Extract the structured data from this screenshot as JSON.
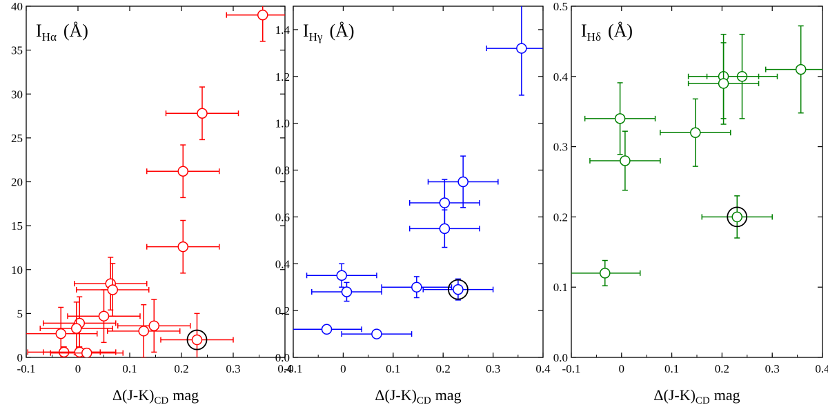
{
  "chart_data": [
    {
      "type": "scatter",
      "label_main": "I",
      "label_sub": "Hα",
      "label_unit": "(Å)",
      "xlabel_main": "Δ(J-K)",
      "xlabel_sub": "CD",
      "xlabel_unit": "mag",
      "xlim": [
        -0.1,
        0.4
      ],
      "ylim": [
        0,
        40
      ],
      "xticks": [
        "-0.1",
        "0",
        "0.1",
        "0.2",
        "0.3",
        "0.4"
      ],
      "xtick_values": [
        -0.1,
        0,
        0.1,
        0.2,
        0.3,
        0.4
      ],
      "yticks": [
        "0",
        "5",
        "10",
        "15",
        "20",
        "25",
        "30",
        "35",
        "40"
      ],
      "ytick_values": [
        0,
        5,
        10,
        15,
        20,
        25,
        30,
        35,
        40
      ],
      "color": "#ff0000",
      "points": [
        {
          "x": 0.357,
          "y": 39.0,
          "xerr": 0.07,
          "yerr": 3.0
        },
        {
          "x": 0.24,
          "y": 27.8,
          "xerr": 0.07,
          "yerr": 3.0
        },
        {
          "x": 0.203,
          "y": 21.2,
          "xerr": 0.07,
          "yerr": 3.0
        },
        {
          "x": 0.203,
          "y": 12.6,
          "xerr": 0.07,
          "yerr": 3.0
        },
        {
          "x": 0.063,
          "y": 8.4,
          "xerr": 0.07,
          "yerr": 3.0
        },
        {
          "x": 0.067,
          "y": 7.7,
          "xerr": 0.07,
          "yerr": 3.0
        },
        {
          "x": 0.05,
          "y": 4.7,
          "xerr": 0.07,
          "yerr": 3.0
        },
        {
          "x": 0.003,
          "y": 3.9,
          "xerr": 0.07,
          "yerr": 3.0
        },
        {
          "x": -0.003,
          "y": 3.3,
          "xerr": 0.07,
          "yerr": 3.0
        },
        {
          "x": -0.033,
          "y": 2.7,
          "xerr": 0.07,
          "yerr": 3.0
        },
        {
          "x": 0.147,
          "y": 3.6,
          "xerr": 0.07,
          "yerr": 3.0
        },
        {
          "x": 0.127,
          "y": 3.0,
          "xerr": 0.07,
          "yerr": 3.0
        },
        {
          "x": 0.23,
          "y": 2.0,
          "xerr": 0.07,
          "yerr": 3.0
        },
        {
          "x": -0.027,
          "y": 0.6,
          "xerr": 0.07,
          "yerr": 0.6
        },
        {
          "x": 0.003,
          "y": 0.6,
          "xerr": 0.07,
          "yerr": 0.6
        },
        {
          "x": 0.017,
          "y": 0.5,
          "xerr": 0.07,
          "yerr": 0.5
        }
      ],
      "highlight": {
        "x": 0.23,
        "y": 2.0
      }
    },
    {
      "type": "scatter",
      "label_main": "I",
      "label_sub": "Hγ",
      "label_unit": "(Å)",
      "xlabel_main": "Δ(J-K)",
      "xlabel_sub": "CD",
      "xlabel_unit": "mag",
      "xlim": [
        -0.1,
        0.4
      ],
      "ylim": [
        0,
        1.5
      ],
      "xticks": [
        "-0.1",
        "0",
        "0.1",
        "0.2",
        "0.3",
        "0.4"
      ],
      "xtick_values": [
        -0.1,
        0,
        0.1,
        0.2,
        0.3,
        0.4
      ],
      "yticks": [
        "0.0",
        "0.2",
        "0.4",
        "0.6",
        "0.8",
        "1.0",
        "1.2",
        "1.4"
      ],
      "ytick_values": [
        0,
        0.2,
        0.4,
        0.6,
        0.8,
        1.0,
        1.2,
        1.4
      ],
      "color": "#0000ff",
      "points": [
        {
          "x": 0.357,
          "y": 1.32,
          "xerr": 0.07,
          "yerr": 0.2
        },
        {
          "x": 0.24,
          "y": 0.75,
          "xerr": 0.07,
          "yerr": 0.11
        },
        {
          "x": 0.203,
          "y": 0.66,
          "xerr": 0.07,
          "yerr": 0.1
        },
        {
          "x": 0.203,
          "y": 0.55,
          "xerr": 0.07,
          "yerr": 0.08
        },
        {
          "x": -0.003,
          "y": 0.35,
          "xerr": 0.07,
          "yerr": 0.05
        },
        {
          "x": 0.007,
          "y": 0.28,
          "xerr": 0.07,
          "yerr": 0.04
        },
        {
          "x": 0.147,
          "y": 0.3,
          "xerr": 0.07,
          "yerr": 0.045
        },
        {
          "x": 0.23,
          "y": 0.29,
          "xerr": 0.07,
          "yerr": 0.045
        },
        {
          "x": -0.033,
          "y": 0.12,
          "xerr": 0.07,
          "yerr": 0.018
        },
        {
          "x": 0.067,
          "y": 0.1,
          "xerr": 0.07,
          "yerr": 0.015
        }
      ],
      "highlight": {
        "x": 0.23,
        "y": 0.29
      }
    },
    {
      "type": "scatter",
      "label_main": "I",
      "label_sub": "Hδ",
      "label_unit": "(Å)",
      "xlabel_main": "Δ(J-K)",
      "xlabel_sub": "CD",
      "xlabel_unit": "mag",
      "xlim": [
        -0.1,
        0.4
      ],
      "ylim": [
        0,
        0.5
      ],
      "xticks": [
        "-0.1",
        "0",
        "0.1",
        "0.2",
        "0.3",
        "0.4"
      ],
      "xtick_values": [
        -0.1,
        0,
        0.1,
        0.2,
        0.3,
        0.4
      ],
      "yticks": [
        "0.0",
        "0.1",
        "0.2",
        "0.3",
        "0.4",
        "0.5"
      ],
      "ytick_values": [
        0,
        0.1,
        0.2,
        0.3,
        0.4,
        0.5
      ],
      "color": "#008000",
      "points": [
        {
          "x": 0.357,
          "y": 0.41,
          "xerr": 0.07,
          "yerr": 0.062
        },
        {
          "x": 0.24,
          "y": 0.4,
          "xerr": 0.07,
          "yerr": 0.06
        },
        {
          "x": 0.203,
          "y": 0.4,
          "xerr": 0.07,
          "yerr": 0.06
        },
        {
          "x": 0.203,
          "y": 0.39,
          "xerr": 0.07,
          "yerr": 0.058
        },
        {
          "x": 0.147,
          "y": 0.32,
          "xerr": 0.07,
          "yerr": 0.048
        },
        {
          "x": -0.003,
          "y": 0.34,
          "xerr": 0.07,
          "yerr": 0.051
        },
        {
          "x": 0.007,
          "y": 0.28,
          "xerr": 0.07,
          "yerr": 0.042
        },
        {
          "x": 0.23,
          "y": 0.2,
          "xerr": 0.07,
          "yerr": 0.03
        },
        {
          "x": -0.033,
          "y": 0.12,
          "xerr": 0.07,
          "yerr": 0.018
        }
      ],
      "highlight": {
        "x": 0.23,
        "y": 0.2
      }
    }
  ]
}
